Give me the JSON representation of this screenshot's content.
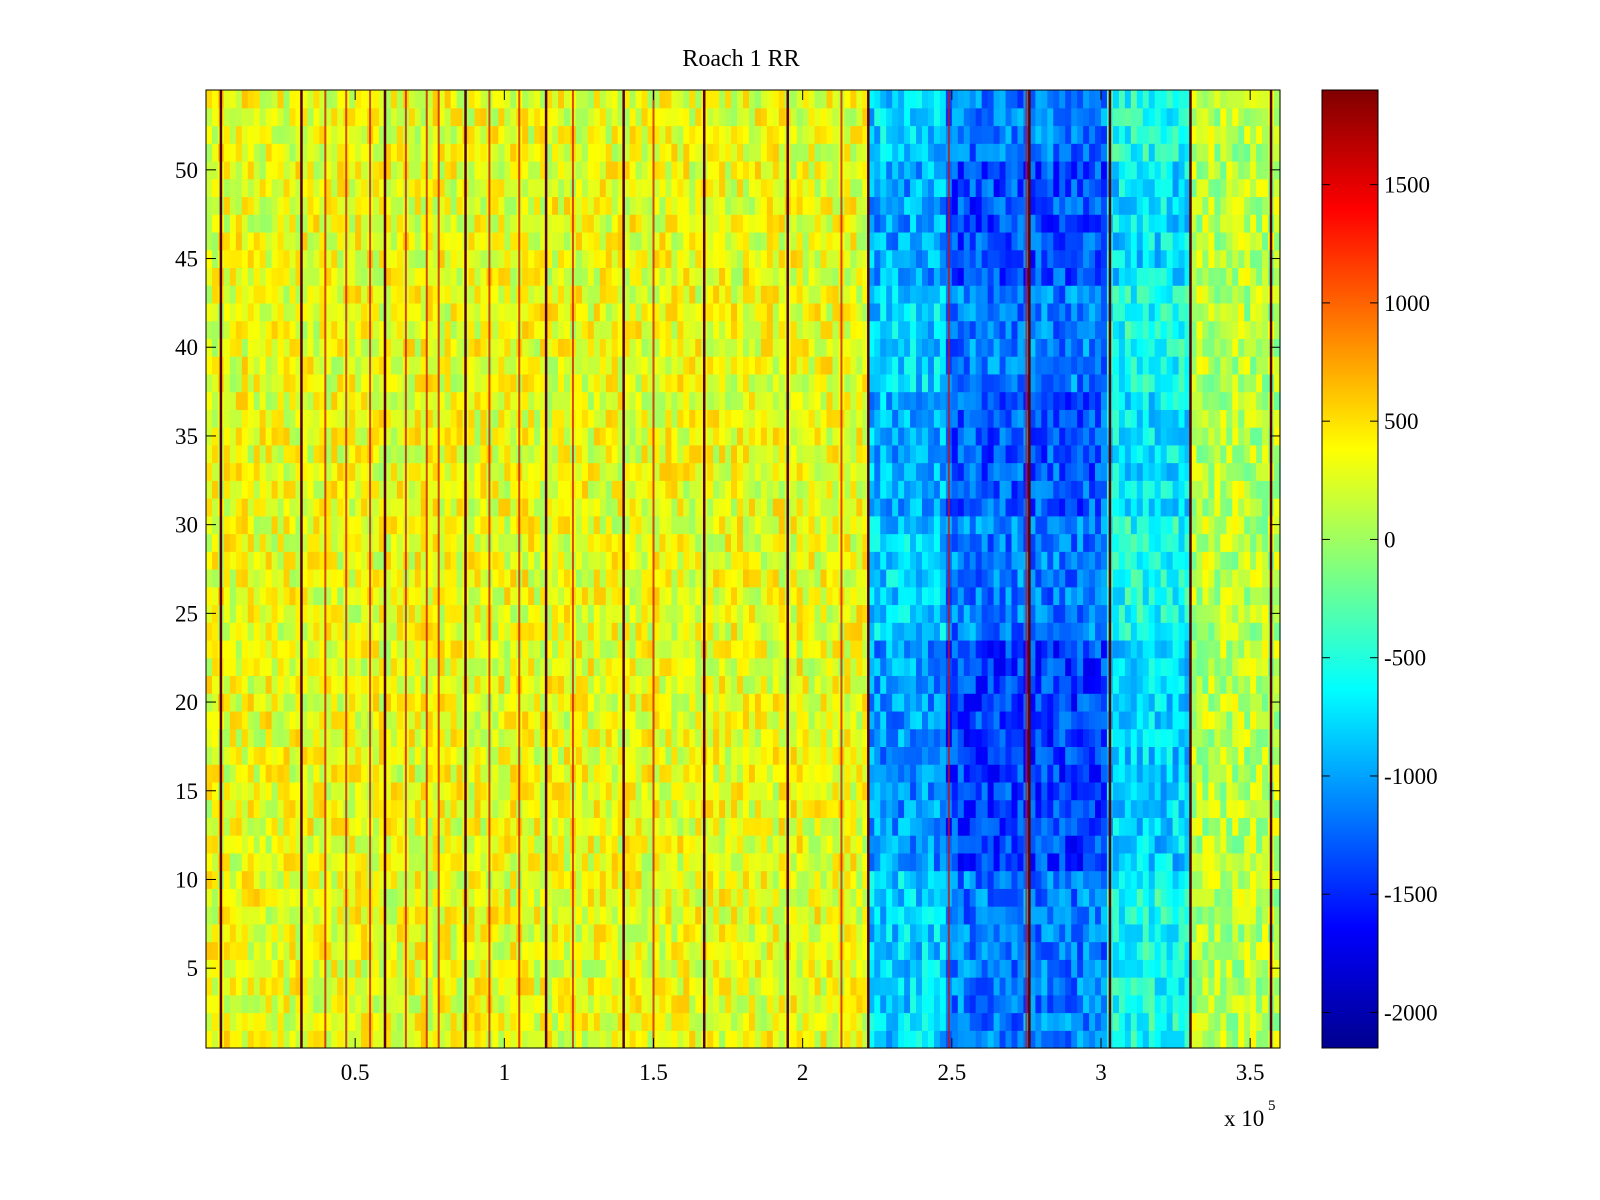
{
  "chart_data": {
    "type": "heatmap",
    "title": "Roach 1 RR",
    "xlabel": "",
    "ylabel": "",
    "x_range": [
      0,
      360000
    ],
    "y_range": [
      0.5,
      54.5
    ],
    "n_rows": 54,
    "x_multiplier_label": "x 10",
    "x_multiplier_exponent": "5",
    "x_ticks": [
      {
        "value": 50000,
        "label": "0.5"
      },
      {
        "value": 100000,
        "label": "1"
      },
      {
        "value": 150000,
        "label": "1.5"
      },
      {
        "value": 200000,
        "label": "2"
      },
      {
        "value": 250000,
        "label": "2.5"
      },
      {
        "value": 300000,
        "label": "3"
      },
      {
        "value": 350000,
        "label": "3.5"
      }
    ],
    "y_ticks": [
      {
        "value": 5,
        "label": "5"
      },
      {
        "value": 10,
        "label": "10"
      },
      {
        "value": 15,
        "label": "15"
      },
      {
        "value": 20,
        "label": "20"
      },
      {
        "value": 25,
        "label": "25"
      },
      {
        "value": 30,
        "label": "30"
      },
      {
        "value": 35,
        "label": "35"
      },
      {
        "value": 40,
        "label": "40"
      },
      {
        "value": 45,
        "label": "45"
      },
      {
        "value": 50,
        "label": "50"
      }
    ],
    "colorbar": {
      "colormap": "jet",
      "range": [
        -2150,
        1900
      ],
      "ticks": [
        {
          "value": 1500,
          "label": "1500"
        },
        {
          "value": 1000,
          "label": "1000"
        },
        {
          "value": 500,
          "label": "500"
        },
        {
          "value": 0,
          "label": "0"
        },
        {
          "value": -500,
          "label": "-500"
        },
        {
          "value": -1000,
          "label": "-1000"
        },
        {
          "value": -1500,
          "label": "-1500"
        },
        {
          "value": -2000,
          "label": "-2000"
        }
      ]
    },
    "regions": [
      {
        "x_start": 0,
        "x_end": 222000,
        "mean_value": 300
      },
      {
        "x_start": 222000,
        "x_end": 248000,
        "mean_value": -800
      },
      {
        "x_start": 248000,
        "x_end": 302000,
        "mean_value": -1150
      },
      {
        "x_start": 302000,
        "x_end": 330000,
        "mean_value": -550
      },
      {
        "x_start": 330000,
        "x_end": 360000,
        "mean_value": 100
      }
    ],
    "row_intensity_bands": [
      {
        "y_start": 11,
        "y_end": 23,
        "extra_value": -250
      },
      {
        "y_start": 31,
        "y_end": 37,
        "extra_value": -150
      },
      {
        "y_start": 44,
        "y_end": 50,
        "extra_value": -200
      }
    ],
    "dark_vertical_lines_x": [
      5000,
      32000,
      60000,
      87000,
      114000,
      140000,
      167000,
      195000,
      222000,
      276000,
      303000,
      330000,
      357000
    ],
    "red_vertical_lines_x": [
      40000,
      47000,
      55000,
      67000,
      74000,
      78000,
      95000,
      105000,
      123000,
      150000,
      213000,
      249000,
      275000
    ]
  }
}
